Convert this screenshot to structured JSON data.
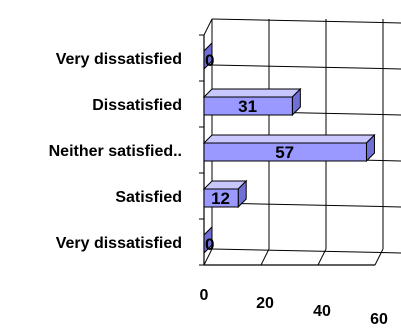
{
  "chart_data": {
    "type": "bar",
    "orientation": "horizontal",
    "three_d": true,
    "categories": [
      "Very dissatisfied",
      "Dissatisfied",
      "Neither satisfied..",
      "Satisfied",
      "Very dissatisfied"
    ],
    "values": [
      0,
      31,
      57,
      12,
      0
    ],
    "data_labels": [
      "0",
      "31",
      "57",
      "12",
      "0"
    ],
    "xticks": [
      "0",
      "20",
      "40",
      "60"
    ],
    "xlim": [
      0,
      60
    ],
    "grid": true,
    "legend": "none",
    "bar_color": "#9999ff"
  }
}
